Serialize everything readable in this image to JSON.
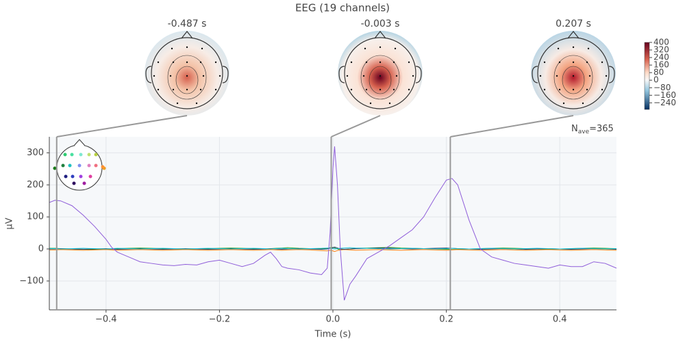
{
  "chart_data": {
    "type": "line",
    "title": "EEG (19 channels)",
    "x_label": "Time (s)",
    "y_label": "µV",
    "xlim": [
      -0.5,
      0.5
    ],
    "ylim": [
      -190,
      350
    ],
    "xticks": [
      {
        "value": -0.4,
        "label": "−0.4"
      },
      {
        "value": -0.2,
        "label": "−0.2"
      },
      {
        "value": 0,
        "label": "0.0"
      },
      0.2,
      0.4
    ],
    "yticks": [
      {
        "value": -100,
        "label": "−100"
      },
      0,
      100,
      200,
      300
    ],
    "grid": true,
    "nave": {
      "label": "N",
      "subscript": "ave",
      "text": "=365"
    },
    "topomaps": [
      {
        "time": -0.487,
        "title": "-0.487 s"
      },
      {
        "time": -0.003,
        "title": "-0.003 s"
      },
      {
        "time": 0.207,
        "title": "0.207 s"
      }
    ],
    "colorbar": {
      "lim": [
        -310,
        400
      ],
      "ticks": [
        400,
        320,
        240,
        160,
        80,
        0,
        {
          "value": -80,
          "label": "−80"
        },
        {
          "value": -160,
          "label": "−160"
        },
        {
          "value": -240,
          "label": "−240"
        }
      ]
    },
    "x": [
      -0.5,
      -0.49,
      -0.48,
      -0.46,
      -0.44,
      -0.42,
      -0.4,
      -0.39,
      -0.38,
      -0.36,
      -0.34,
      -0.32,
      -0.3,
      -0.28,
      -0.26,
      -0.24,
      -0.22,
      -0.2,
      -0.18,
      -0.16,
      -0.14,
      -0.12,
      -0.11,
      -0.1,
      -0.09,
      -0.08,
      -0.06,
      -0.04,
      -0.02,
      -0.01,
      -0.005,
      0,
      0.003,
      0.008,
      0.013,
      0.02,
      0.03,
      0.04,
      0.06,
      0.08,
      0.1,
      0.12,
      0.14,
      0.16,
      0.18,
      0.2,
      0.21,
      0.22,
      0.24,
      0.26,
      0.28,
      0.3,
      0.32,
      0.34,
      0.36,
      0.38,
      0.4,
      0.42,
      0.44,
      0.46,
      0.48,
      0.5
    ],
    "series": [
      {
        "color": "#2ca02c",
        "values": [
          2,
          2,
          1,
          0,
          -1,
          -2,
          -1,
          0,
          1,
          2,
          3,
          2,
          1,
          0,
          -1,
          0,
          1,
          2,
          3,
          2,
          1,
          0,
          1,
          2,
          3,
          4,
          2,
          1,
          0,
          2,
          4,
          5,
          3,
          0,
          -3,
          -2,
          0,
          2,
          3,
          4,
          5,
          3,
          2,
          1,
          0,
          -1,
          -2,
          -1,
          0,
          1,
          2,
          3,
          2,
          1,
          0,
          -1,
          0,
          1,
          2,
          3,
          2,
          1
        ]
      },
      {
        "color": "#ff7f0e",
        "values": [
          -3,
          -3,
          -2,
          -3,
          -4,
          -3,
          -2,
          -3,
          -4,
          -3,
          -2,
          -3,
          -4,
          -3,
          -2,
          -3,
          -4,
          -3,
          -2,
          -3,
          -4,
          -3,
          -2,
          -3,
          -4,
          -3,
          -2,
          -3,
          -5,
          -6,
          -4,
          -6,
          -8,
          -5,
          -3,
          -2,
          -3,
          -4,
          -3,
          -2,
          -3,
          -4,
          -3,
          -2,
          -3,
          -4,
          -3,
          -2,
          -3,
          -4,
          -3,
          -2,
          -3,
          -4,
          -3,
          -2,
          -3,
          -4,
          -3,
          -2,
          -3,
          -4
        ]
      },
      {
        "color": "#1f3a5f",
        "values": [
          0,
          0,
          1,
          0,
          -1,
          0,
          1,
          0,
          -1,
          0,
          1,
          0,
          -1,
          0,
          1,
          0,
          -1,
          0,
          1,
          0,
          -1,
          0,
          1,
          0,
          -1,
          0,
          1,
          0,
          -1,
          0,
          2,
          4,
          6,
          3,
          0,
          -1,
          0,
          1,
          2,
          3,
          2,
          1,
          0,
          1,
          2,
          3,
          2,
          1,
          0,
          -1,
          0,
          1,
          0,
          -1,
          0,
          1,
          0,
          -1,
          0,
          1,
          0,
          -1
        ]
      },
      {
        "color": "#17becf",
        "values": [
          1,
          1,
          0,
          1,
          2,
          1,
          0,
          1,
          2,
          1,
          0,
          1,
          2,
          1,
          0,
          1,
          2,
          1,
          0,
          1,
          2,
          1,
          0,
          1,
          2,
          1,
          0,
          1,
          2,
          3,
          2,
          1,
          0,
          1,
          2,
          3,
          4,
          3,
          2,
          1,
          0,
          1,
          2,
          1,
          0,
          1,
          2,
          1,
          0,
          1,
          2,
          1,
          0,
          1,
          2,
          1,
          0,
          1,
          2,
          1,
          0,
          1
        ]
      },
      {
        "color": "#8e5cd9",
        "values": [
          145,
          152,
          150,
          135,
          105,
          70,
          30,
          5,
          -10,
          -25,
          -40,
          -45,
          -50,
          -52,
          -48,
          -50,
          -40,
          -35,
          -45,
          -55,
          -45,
          -20,
          -10,
          -30,
          -55,
          -60,
          -65,
          -75,
          -80,
          -60,
          50,
          250,
          320,
          200,
          0,
          -160,
          -110,
          -85,
          -30,
          -10,
          10,
          35,
          60,
          100,
          160,
          215,
          220,
          200,
          90,
          0,
          -25,
          -35,
          -45,
          -50,
          -55,
          -60,
          -50,
          -55,
          -55,
          -40,
          -45,
          -60
        ]
      }
    ]
  }
}
